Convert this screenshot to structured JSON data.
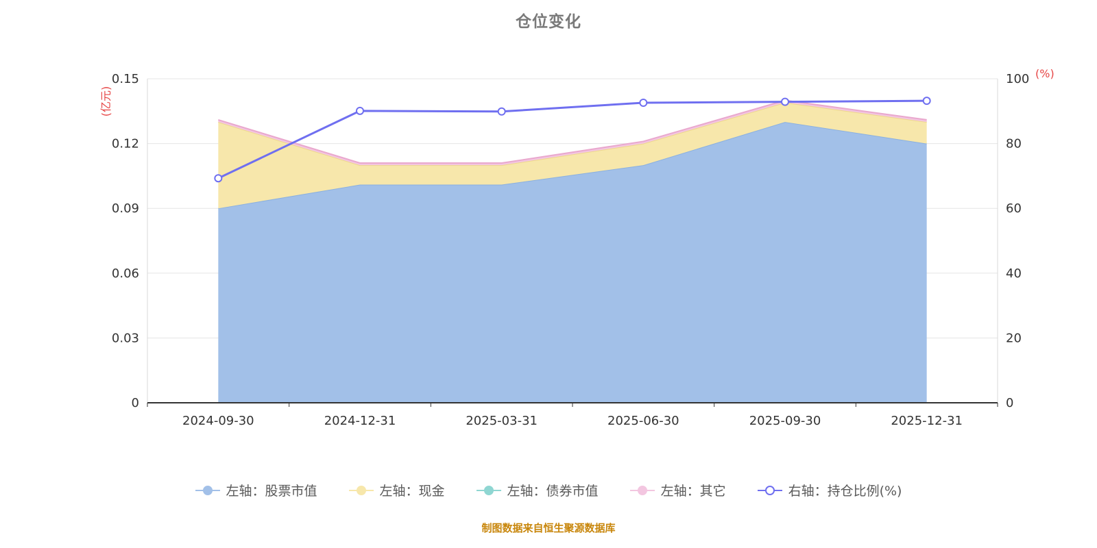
{
  "title": "仓位变化",
  "footer": "制图数据来自恒生聚源数据库",
  "colors": {
    "title": "#7a7a7a",
    "footer": "#c8860b"
  },
  "chart_data": {
    "type": "area",
    "subtype": "stacked-area-with-right-axis-line",
    "title": "仓位变化",
    "categories": [
      "2024-09-30",
      "2024-12-31",
      "2025-03-31",
      "2025-06-30",
      "2025-09-30",
      "2025-12-31"
    ],
    "left_axis": {
      "unit": "(亿元)",
      "min": 0,
      "max": 0.15,
      "tick_values": [
        0,
        0.03,
        0.06,
        0.09,
        0.12,
        0.15
      ],
      "tick_labels": [
        "0",
        "0.03",
        "0.06",
        "0.09",
        "0.12",
        "0.15"
      ]
    },
    "right_axis": {
      "unit": "(%)",
      "min": 0,
      "max": 100,
      "tick_values": [
        0,
        20,
        40,
        60,
        80,
        100
      ],
      "tick_labels": [
        "0",
        "20",
        "40",
        "60",
        "80",
        "100"
      ]
    },
    "area_series": [
      {
        "name": "左轴：股票市值",
        "color": "#a2c0e8",
        "edge_color": "#8ab0e0",
        "values": [
          0.09,
          0.101,
          0.101,
          0.11,
          0.13,
          0.12
        ]
      },
      {
        "name": "左轴：现金",
        "color": "#f7e7ab",
        "edge_color": "#eed98a",
        "values": [
          0.04,
          0.009,
          0.009,
          0.01,
          0.009,
          0.01
        ]
      },
      {
        "name": "左轴：债券市值",
        "color": "#8fd6d2",
        "edge_color": "#6cc6c0",
        "values": [
          0,
          0,
          0,
          0,
          0,
          0
        ]
      },
      {
        "name": "左轴：其它",
        "color": "#f3c6e0",
        "edge_color": "#e9a8ce",
        "values": [
          0.001,
          0.001,
          0.001,
          0.001,
          0.001,
          0.001
        ]
      }
    ],
    "line_series": {
      "name": "右轴：持仓比例(%)",
      "color": "#6f6ff0",
      "marker_fill": "#ffffff",
      "values": [
        69.3,
        90.1,
        89.9,
        92.6,
        92.9,
        93.2
      ]
    },
    "style": {
      "grid_color": "#e5e5e5",
      "axis_line_color": "#333333",
      "side_axis_color": "#d9d9d9",
      "tick_label_color": "#333333",
      "unit_label_color": "#e64545",
      "legend_text_color": "#595959"
    },
    "legend_position": "bottom",
    "grid": true
  }
}
